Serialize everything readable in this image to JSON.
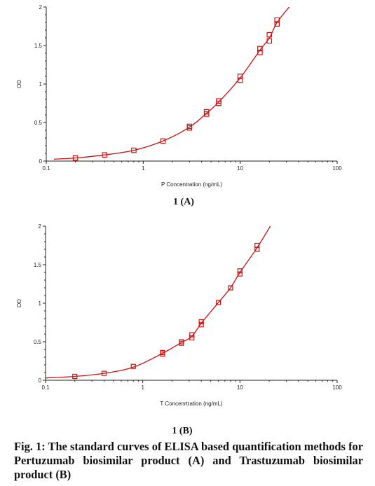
{
  "chart_data": [
    {
      "panel": "1 (A)",
      "type": "scatter",
      "xlabel": "P Concentration (ng/mL)",
      "ylabel": "OD",
      "xscale": "log",
      "xlim": [
        0.1,
        100
      ],
      "ylim": [
        0,
        2
      ],
      "xticks": [
        "0.1",
        "1",
        "10",
        "100"
      ],
      "yticks": [
        "0",
        "0.5",
        "1",
        "1.5",
        "2"
      ],
      "grid": false,
      "series": [
        {
          "marker": "square",
          "color": "#cc1111",
          "x": [
            0.2,
            0.4,
            0.8,
            1.6,
            3,
            3,
            4.5,
            4.5,
            6,
            6,
            10,
            10,
            16,
            16,
            20,
            20,
            24,
            24
          ],
          "y": [
            0.04,
            0.08,
            0.14,
            0.26,
            0.43,
            0.45,
            0.61,
            0.64,
            0.75,
            0.78,
            1.05,
            1.1,
            1.41,
            1.46,
            1.56,
            1.64,
            1.78,
            1.83
          ]
        }
      ],
      "fit": {
        "color": "#cc1111",
        "x": [
          0.12,
          0.2,
          0.4,
          0.8,
          1.6,
          3,
          4.5,
          6,
          10,
          16,
          20,
          24,
          32
        ],
        "y": [
          0.025,
          0.04,
          0.08,
          0.14,
          0.26,
          0.44,
          0.62,
          0.765,
          1.08,
          1.44,
          1.6,
          1.8,
          2.0
        ]
      }
    },
    {
      "panel": "1 (B)",
      "type": "scatter",
      "xlabel": "T Concenrtration (ng/mL)",
      "ylabel": "OD",
      "xscale": "log",
      "xlim": [
        0.1,
        100
      ],
      "ylim": [
        0,
        2
      ],
      "xticks": [
        "0.1",
        "1",
        "10",
        "100"
      ],
      "yticks": [
        "0",
        "0.5",
        "1",
        "1.5",
        "2"
      ],
      "grid": false,
      "series": [
        {
          "marker": "square",
          "color": "#cc1111",
          "x": [
            0.2,
            0.4,
            0.8,
            1.6,
            1.6,
            2.5,
            2.5,
            3.2,
            3.2,
            4,
            4,
            6,
            8,
            10,
            10,
            15,
            15
          ],
          "y": [
            0.05,
            0.09,
            0.18,
            0.34,
            0.36,
            0.48,
            0.5,
            0.55,
            0.59,
            0.72,
            0.76,
            1.01,
            1.2,
            1.38,
            1.42,
            1.7,
            1.75
          ],
          "marker_size": "small"
        }
      ],
      "fit": {
        "color": "#cc1111",
        "x": [
          0.1,
          0.2,
          0.4,
          0.8,
          1.6,
          2.5,
          3.2,
          4,
          6,
          8,
          10,
          15,
          20.5
        ],
        "y": [
          0.03,
          0.05,
          0.09,
          0.17,
          0.35,
          0.49,
          0.57,
          0.74,
          1.01,
          1.2,
          1.4,
          1.72,
          2.0
        ]
      }
    }
  ],
  "panels": [
    {
      "label": "1 (A)"
    },
    {
      "label": "1 (B)"
    }
  ],
  "caption": "Fig. 1: The standard curves of ELISA based quantification methods for Pertuzumab biosimilar product (A) and Trastuzumab biosimilar product (B)"
}
